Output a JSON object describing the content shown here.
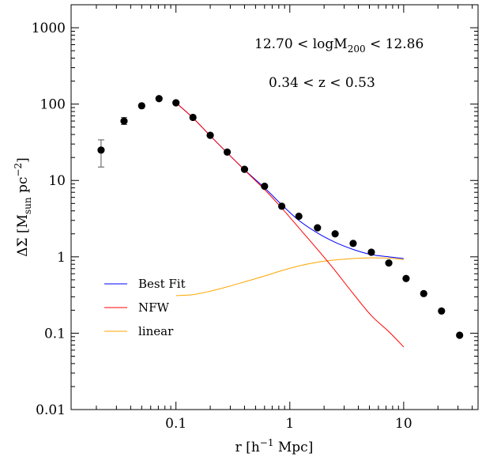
{
  "chart_data": {
    "type": "scatter",
    "xscale": "log",
    "yscale": "log",
    "xlim": [
      0.012,
      45
    ],
    "ylim": [
      0.01,
      2000
    ],
    "xticks": [
      {
        "value": 0.1,
        "label": "0.1"
      },
      {
        "value": 1,
        "label": "1"
      },
      {
        "value": 10,
        "label": "10"
      }
    ],
    "yticks": [
      {
        "value": 0.01,
        "label": "0.01"
      },
      {
        "value": 0.1,
        "label": "0.1"
      },
      {
        "value": 1,
        "label": "1"
      },
      {
        "value": 10,
        "label": "10"
      },
      {
        "value": 100,
        "label": "100"
      },
      {
        "value": 1000,
        "label": "1000"
      }
    ],
    "xlabel": {
      "pre": "r  [h",
      "sup": "−1",
      "post": " Mpc]"
    },
    "ylabel": {
      "pre": "ΔΣ  [M",
      "sub": "sun",
      "mid": "  pc",
      "sup": "−2",
      "post": "]"
    },
    "annotations": {
      "mass_range": {
        "pre": "12.70  <  logM",
        "sub": "200",
        "post": "  <  12.86"
      },
      "redshift_range": "0.34  <  z  <  0.53"
    },
    "legend_position": "lower-left",
    "points": [
      {
        "x": 0.022,
        "y": 25,
        "yerr_low": 15,
        "yerr_high": 34
      },
      {
        "x": 0.035,
        "y": 60,
        "yerr_low": 54,
        "yerr_high": 67
      },
      {
        "x": 0.05,
        "y": 95
      },
      {
        "x": 0.071,
        "y": 118
      },
      {
        "x": 0.1,
        "y": 104
      },
      {
        "x": 0.141,
        "y": 67
      },
      {
        "x": 0.2,
        "y": 39
      },
      {
        "x": 0.282,
        "y": 23.5
      },
      {
        "x": 0.4,
        "y": 14
      },
      {
        "x": 0.6,
        "y": 8.4
      },
      {
        "x": 0.85,
        "y": 4.6
      },
      {
        "x": 1.2,
        "y": 3.4
      },
      {
        "x": 1.75,
        "y": 2.4
      },
      {
        "x": 2.5,
        "y": 2.0
      },
      {
        "x": 3.6,
        "y": 1.5
      },
      {
        "x": 5.2,
        "y": 1.15
      },
      {
        "x": 7.4,
        "y": 0.83
      },
      {
        "x": 10.5,
        "y": 0.52
      },
      {
        "x": 15,
        "y": 0.33
      },
      {
        "x": 21.5,
        "y": 0.195
      },
      {
        "x": 31,
        "y": 0.094
      }
    ],
    "series": [
      {
        "name": "Best Fit",
        "color": "#0000ff",
        "x": [
          0.1,
          0.141,
          0.2,
          0.282,
          0.4,
          0.6,
          0.85,
          1.2,
          1.75,
          2.5,
          3.6,
          5.2,
          7.4,
          10
        ],
        "y": [
          104,
          66,
          38.5,
          23,
          13.8,
          8.0,
          4.8,
          3.0,
          2.05,
          1.55,
          1.25,
          1.07,
          1.0,
          0.95
        ]
      },
      {
        "name": "NFW",
        "color": "#ff0000",
        "x": [
          0.1,
          0.141,
          0.2,
          0.282,
          0.4,
          0.6,
          0.85,
          1.2,
          1.75,
          2.5,
          3.6,
          5.2,
          7.4,
          10
        ],
        "y": [
          104,
          66,
          38.5,
          23,
          13.7,
          7.6,
          4.35,
          2.4,
          1.25,
          0.66,
          0.33,
          0.17,
          0.105,
          0.066
        ]
      },
      {
        "name": "linear",
        "color": "#ffa500",
        "x": [
          0.1,
          0.141,
          0.2,
          0.282,
          0.4,
          0.6,
          0.85,
          1.2,
          1.75,
          2.5,
          3.6,
          5.2,
          7.4,
          10
        ],
        "y": [
          0.31,
          0.32,
          0.355,
          0.405,
          0.47,
          0.56,
          0.66,
          0.76,
          0.85,
          0.91,
          0.95,
          0.97,
          0.96,
          0.92
        ]
      }
    ]
  }
}
